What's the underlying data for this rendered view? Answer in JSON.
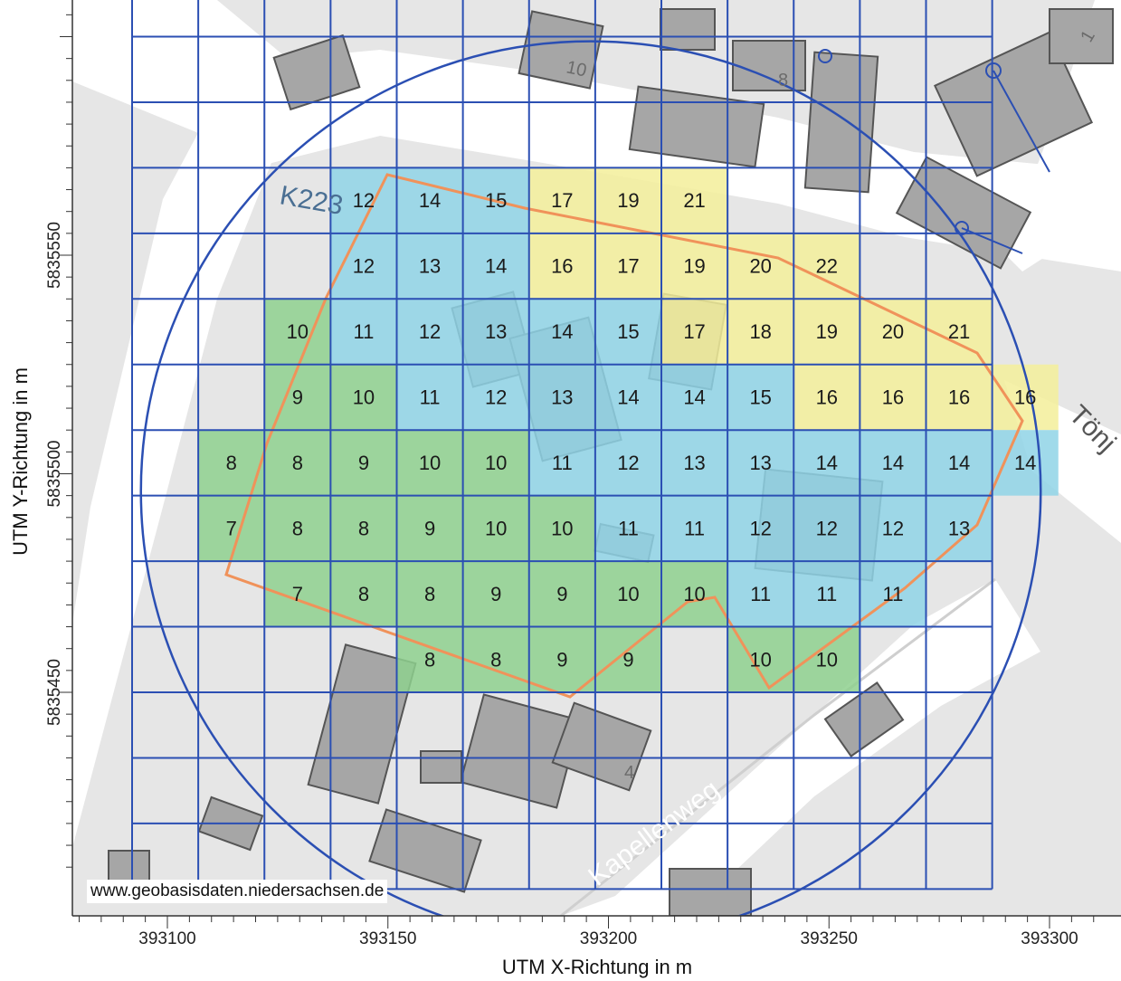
{
  "map": {
    "x_axis": {
      "title": "UTM X-Richtung in m",
      "min": 393080,
      "max": 393310,
      "tick_labels": [
        393100,
        393150,
        393200,
        393250,
        393300
      ]
    },
    "y_axis": {
      "title": "UTM Y-Richtung in m",
      "min": 5835409,
      "max": 5835618,
      "tick_labels": [
        5835450,
        5835500,
        5835550
      ]
    },
    "grid": {
      "x_start": 393092,
      "x_end": 393300,
      "y_start": 5835405,
      "y_end": 5835615,
      "spacing_m": 15,
      "line_color": "#2b4fb3"
    },
    "circle": {
      "center_x": 393196,
      "center_y": 5835496,
      "radius_m": 102,
      "color": "#2b4fb3"
    },
    "colors": {
      "green": "#8ed08e",
      "blue": "#8fd3e6",
      "yellow": "#f3ee9a",
      "boundary": "#f0925a",
      "background": "#e6e6e6",
      "road": "#ffffff",
      "building": "#a6a6a6"
    },
    "street_labels": [
      "K223",
      "Kapellenweg",
      "Tönj"
    ],
    "house_numbers": [
      "10",
      "8",
      "1",
      "4"
    ],
    "copyright": "www.geobasisdaten.niedersachsen.de",
    "cells": [
      {
        "row": 0,
        "col": 2,
        "value": "12",
        "color": "blue"
      },
      {
        "row": 0,
        "col": 3,
        "value": "14",
        "color": "blue"
      },
      {
        "row": 0,
        "col": 4,
        "value": "15",
        "color": "blue"
      },
      {
        "row": 0,
        "col": 5,
        "value": "17",
        "color": "yellow"
      },
      {
        "row": 0,
        "col": 6,
        "value": "19",
        "color": "yellow"
      },
      {
        "row": 0,
        "col": 7,
        "value": "21",
        "color": "yellow"
      },
      {
        "row": 1,
        "col": 2,
        "value": "12",
        "color": "blue"
      },
      {
        "row": 1,
        "col": 3,
        "value": "13",
        "color": "blue"
      },
      {
        "row": 1,
        "col": 4,
        "value": "14",
        "color": "blue"
      },
      {
        "row": 1,
        "col": 5,
        "value": "16",
        "color": "yellow"
      },
      {
        "row": 1,
        "col": 6,
        "value": "17",
        "color": "yellow"
      },
      {
        "row": 1,
        "col": 7,
        "value": "19",
        "color": "yellow"
      },
      {
        "row": 1,
        "col": 8,
        "value": "20",
        "color": "yellow"
      },
      {
        "row": 1,
        "col": 9,
        "value": "22",
        "color": "yellow"
      },
      {
        "row": 2,
        "col": 1,
        "value": "10",
        "color": "green"
      },
      {
        "row": 2,
        "col": 2,
        "value": "11",
        "color": "blue"
      },
      {
        "row": 2,
        "col": 3,
        "value": "12",
        "color": "blue"
      },
      {
        "row": 2,
        "col": 4,
        "value": "13",
        "color": "blue"
      },
      {
        "row": 2,
        "col": 5,
        "value": "14",
        "color": "blue"
      },
      {
        "row": 2,
        "col": 6,
        "value": "15",
        "color": "blue"
      },
      {
        "row": 2,
        "col": 7,
        "value": "17",
        "color": "yellow"
      },
      {
        "row": 2,
        "col": 8,
        "value": "18",
        "color": "yellow"
      },
      {
        "row": 2,
        "col": 9,
        "value": "19",
        "color": "yellow"
      },
      {
        "row": 2,
        "col": 10,
        "value": "20",
        "color": "yellow"
      },
      {
        "row": 2,
        "col": 11,
        "value": "21",
        "color": "yellow"
      },
      {
        "row": 3,
        "col": 1,
        "value": "9",
        "color": "green"
      },
      {
        "row": 3,
        "col": 2,
        "value": "10",
        "color": "green"
      },
      {
        "row": 3,
        "col": 3,
        "value": "11",
        "color": "blue"
      },
      {
        "row": 3,
        "col": 4,
        "value": "12",
        "color": "blue"
      },
      {
        "row": 3,
        "col": 5,
        "value": "13",
        "color": "blue"
      },
      {
        "row": 3,
        "col": 6,
        "value": "14",
        "color": "blue"
      },
      {
        "row": 3,
        "col": 7,
        "value": "14",
        "color": "blue"
      },
      {
        "row": 3,
        "col": 8,
        "value": "15",
        "color": "blue"
      },
      {
        "row": 3,
        "col": 9,
        "value": "16",
        "color": "yellow"
      },
      {
        "row": 3,
        "col": 10,
        "value": "16",
        "color": "yellow"
      },
      {
        "row": 3,
        "col": 11,
        "value": "16",
        "color": "yellow"
      },
      {
        "row": 3,
        "col": 12,
        "value": "16",
        "color": "yellow"
      },
      {
        "row": 4,
        "col": 0,
        "value": "8",
        "color": "green"
      },
      {
        "row": 4,
        "col": 1,
        "value": "8",
        "color": "green"
      },
      {
        "row": 4,
        "col": 2,
        "value": "9",
        "color": "green"
      },
      {
        "row": 4,
        "col": 3,
        "value": "10",
        "color": "green"
      },
      {
        "row": 4,
        "col": 4,
        "value": "10",
        "color": "green"
      },
      {
        "row": 4,
        "col": 5,
        "value": "11",
        "color": "blue"
      },
      {
        "row": 4,
        "col": 6,
        "value": "12",
        "color": "blue"
      },
      {
        "row": 4,
        "col": 7,
        "value": "13",
        "color": "blue"
      },
      {
        "row": 4,
        "col": 8,
        "value": "13",
        "color": "blue"
      },
      {
        "row": 4,
        "col": 9,
        "value": "14",
        "color": "blue"
      },
      {
        "row": 4,
        "col": 10,
        "value": "14",
        "color": "blue"
      },
      {
        "row": 4,
        "col": 11,
        "value": "14",
        "color": "blue"
      },
      {
        "row": 4,
        "col": 12,
        "value": "14",
        "color": "blue"
      },
      {
        "row": 5,
        "col": 0,
        "value": "7",
        "color": "green"
      },
      {
        "row": 5,
        "col": 1,
        "value": "8",
        "color": "green"
      },
      {
        "row": 5,
        "col": 2,
        "value": "8",
        "color": "green"
      },
      {
        "row": 5,
        "col": 3,
        "value": "9",
        "color": "green"
      },
      {
        "row": 5,
        "col": 4,
        "value": "10",
        "color": "green"
      },
      {
        "row": 5,
        "col": 5,
        "value": "10",
        "color": "green"
      },
      {
        "row": 5,
        "col": 6,
        "value": "11",
        "color": "blue"
      },
      {
        "row": 5,
        "col": 7,
        "value": "11",
        "color": "blue"
      },
      {
        "row": 5,
        "col": 8,
        "value": "12",
        "color": "blue"
      },
      {
        "row": 5,
        "col": 9,
        "value": "12",
        "color": "blue"
      },
      {
        "row": 5,
        "col": 10,
        "value": "12",
        "color": "blue"
      },
      {
        "row": 5,
        "col": 11,
        "value": "13",
        "color": "blue"
      },
      {
        "row": 6,
        "col": 1,
        "value": "7",
        "color": "green"
      },
      {
        "row": 6,
        "col": 2,
        "value": "8",
        "color": "green"
      },
      {
        "row": 6,
        "col": 3,
        "value": "8",
        "color": "green"
      },
      {
        "row": 6,
        "col": 4,
        "value": "9",
        "color": "green"
      },
      {
        "row": 6,
        "col": 5,
        "value": "9",
        "color": "green"
      },
      {
        "row": 6,
        "col": 6,
        "value": "10",
        "color": "green"
      },
      {
        "row": 6,
        "col": 7,
        "value": "10",
        "color": "green"
      },
      {
        "row": 6,
        "col": 8,
        "value": "11",
        "color": "blue"
      },
      {
        "row": 6,
        "col": 9,
        "value": "11",
        "color": "blue"
      },
      {
        "row": 6,
        "col": 10,
        "value": "11",
        "color": "blue"
      },
      {
        "row": 7,
        "col": 3,
        "value": "8",
        "color": "green"
      },
      {
        "row": 7,
        "col": 4,
        "value": "8",
        "color": "green"
      },
      {
        "row": 7,
        "col": 5,
        "value": "9",
        "color": "green"
      },
      {
        "row": 7,
        "col": 6,
        "value": "9",
        "color": "green"
      },
      {
        "row": 7,
        "col": 8,
        "value": "10",
        "color": "green"
      },
      {
        "row": 7,
        "col": 9,
        "value": "10",
        "color": "green"
      }
    ]
  }
}
